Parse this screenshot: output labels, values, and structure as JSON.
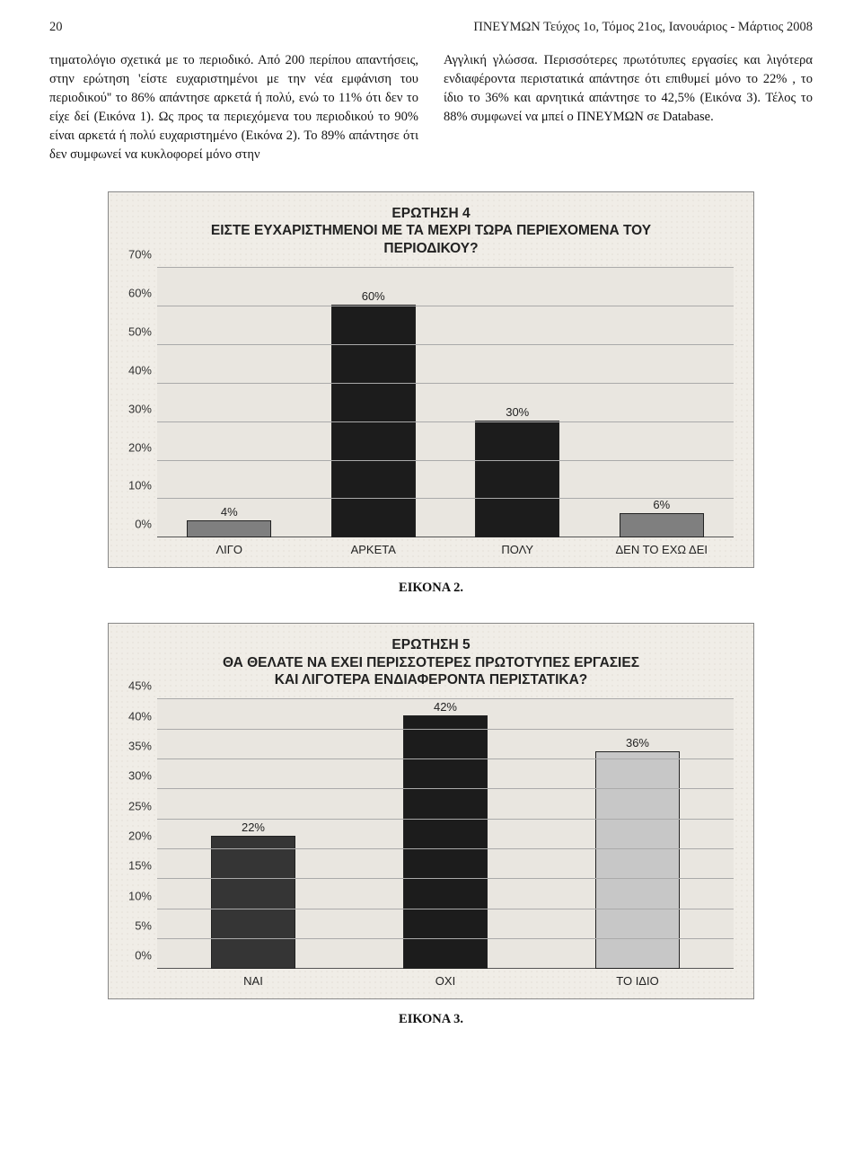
{
  "page_number": "20",
  "journal_header": "ΠΝΕΥΜΩΝ Τεύχος 1ο, Τόμος 21ος, Ιανουάριος - Μάρτιος 2008",
  "column_left": "τηματολόγιο σχετικά με το περιοδικό. Από 200 περίπου απαντήσεις, στην ερώτηση 'είστε ευχαριστημένοι με την νέα εμφάνιση του περιοδικού'' το 86% απάντησε αρκετά ή πολύ, ενώ το 11% ότι δεν το είχε δεί (Εικόνα 1). Ως προς τα περιεχόμενα του περιοδικού το 90% είναι αρκετά ή πολύ ευχαριστημένο (Εικόνα 2). Το 89% απάντησε ότι δεν συμφωνεί να κυκλοφορεί μόνο στην",
  "column_right": "Αγγλική γλώσσα. Περισσότερες πρωτότυπες εργασίες και λιγότερα ενδιαφέροντα περιστατικά απάντησε ότι επιθυμεί μόνο το 22% , το ίδιο το 36% και αρνητικά απάντησε το 42,5% (Εικόνα 3). Τέλος το 88% συμφωνεί να μπεί ο ΠΝΕΥΜΩΝ σε Database.",
  "chart1": {
    "title_line1": "ΕΡΩΤΗΣΗ 4",
    "title_line2": "ΕΙΣΤΕ ΕΥΧΑΡΙΣΤΗΜΕΝΟΙ ΜΕ ΤΑ ΜΕΧΡΙ ΤΩΡΑ ΠΕΡΙΕΧΟΜΕΝΑ ΤΟΥ",
    "title_line3": "ΠΕΡΙΟΔΙΚΟΥ?",
    "type": "bar",
    "ylim_max": 70,
    "ytick_step": 10,
    "yticks": [
      "0%",
      "10%",
      "20%",
      "30%",
      "40%",
      "50%",
      "60%",
      "70%"
    ],
    "categories": [
      "ΛΙΓΟ",
      "ΑΡΚΕΤΑ",
      "ΠΟΛΥ",
      "ΔΕΝ ΤΟ ΕΧΩ ΔΕΙ"
    ],
    "values": [
      4,
      60,
      30,
      6
    ],
    "value_labels": [
      "4%",
      "60%",
      "30%",
      "6%"
    ],
    "bar_colors": [
      "#7f7f7f",
      "#1c1c1c",
      "#1c1c1c",
      "#7f7f7f"
    ],
    "plot_bg": "#e9e6e0",
    "grid_color": "#aaaaaa",
    "border_color": "#888888",
    "caption": "ΕΙΚΟΝΑ 2."
  },
  "chart2": {
    "title_line1": "ΕΡΩΤΗΣΗ 5",
    "title_line2": "ΘΑ ΘΕΛΑΤΕ ΝΑ ΕΧΕΙ ΠΕΡΙΣΣΟΤΕΡΕΣ ΠΡΩΤΟΤΥΠΕΣ ΕΡΓΑΣΙΕΣ",
    "title_line3": "ΚΑΙ ΛΙΓΟΤΕΡΑ ΕΝΔΙΑΦΕΡΟΝΤΑ ΠΕΡΙΣΤΑΤΙΚΑ?",
    "type": "bar",
    "ylim_max": 45,
    "ytick_step": 5,
    "yticks": [
      "0%",
      "5%",
      "10%",
      "15%",
      "20%",
      "25%",
      "30%",
      "35%",
      "40%",
      "45%"
    ],
    "categories": [
      "ΝΑΙ",
      "ΟΧΙ",
      "ΤΟ ΙΔΙΟ"
    ],
    "values": [
      22,
      42,
      36
    ],
    "value_labels": [
      "22%",
      "42%",
      "36%"
    ],
    "bar_colors": [
      "#353535",
      "#1c1c1c",
      "#c7c7c7"
    ],
    "plot_bg": "#e9e6e0",
    "grid_color": "#aaaaaa",
    "border_color": "#888888",
    "caption": "ΕΙΚΟΝΑ 3."
  }
}
